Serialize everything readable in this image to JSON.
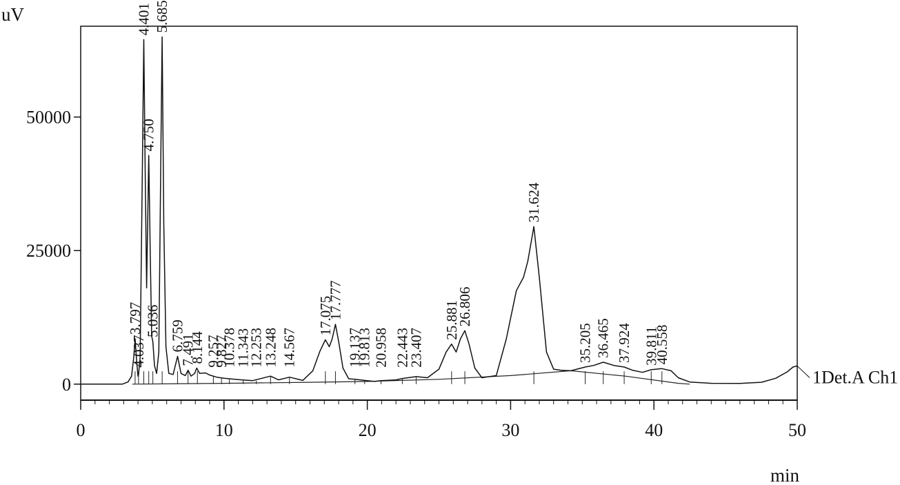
{
  "chart_data": {
    "type": "line",
    "ylabel": "uV",
    "xlabel": "min",
    "xlim": [
      0,
      50
    ],
    "ylim": [
      -3000,
      67000
    ],
    "x_ticks": [
      "0",
      "10",
      "20",
      "30",
      "40",
      "50"
    ],
    "y_ticks": [
      "0",
      "25000",
      "50000"
    ],
    "x_tick_values": [
      0,
      10,
      20,
      30,
      40,
      50
    ],
    "y_tick_values": [
      0,
      25000,
      50000
    ],
    "x_minor_step": 1,
    "grid": false,
    "series": [
      {
        "name": "1Det.A Ch1",
        "color": "#111111",
        "points": [
          [
            0,
            0
          ],
          [
            2.9,
            0
          ],
          [
            3.3,
            400
          ],
          [
            3.55,
            1500
          ],
          [
            3.7,
            5000
          ],
          [
            3.797,
            8500
          ],
          [
            3.9,
            4500
          ],
          [
            4.0,
            1500
          ],
          [
            4.037,
            1800
          ],
          [
            4.15,
            5000
          ],
          [
            4.3,
            40000
          ],
          [
            4.401,
            64500
          ],
          [
            4.5,
            40000
          ],
          [
            4.6,
            18000
          ],
          [
            4.75,
            42800
          ],
          [
            4.85,
            25000
          ],
          [
            4.95,
            9000
          ],
          [
            5.036,
            8000
          ],
          [
            5.15,
            3500
          ],
          [
            5.3,
            2000
          ],
          [
            5.45,
            6000
          ],
          [
            5.6,
            45000
          ],
          [
            5.685,
            65000
          ],
          [
            5.8,
            30000
          ],
          [
            5.95,
            7000
          ],
          [
            6.15,
            2000
          ],
          [
            6.45,
            1800
          ],
          [
            6.759,
            5200
          ],
          [
            7.0,
            2000
          ],
          [
            7.3,
            1600
          ],
          [
            7.491,
            2600
          ],
          [
            7.7,
            1500
          ],
          [
            7.95,
            2000
          ],
          [
            8.1,
            3000
          ],
          [
            8.3,
            2000
          ],
          [
            8.7,
            2100
          ],
          [
            9.0,
            1700
          ],
          [
            9.5,
            1300
          ],
          [
            10.0,
            1100
          ],
          [
            11.0,
            850
          ],
          [
            12.0,
            650
          ],
          [
            13.248,
            1500
          ],
          [
            13.8,
            800
          ],
          [
            14.567,
            1300
          ],
          [
            15.5,
            700
          ],
          [
            16.2,
            2500
          ],
          [
            16.7,
            6200
          ],
          [
            17.075,
            8300
          ],
          [
            17.35,
            7000
          ],
          [
            17.55,
            8500
          ],
          [
            17.777,
            11200
          ],
          [
            18.0,
            8000
          ],
          [
            18.3,
            3000
          ],
          [
            18.7,
            1000
          ],
          [
            19.137,
            900
          ],
          [
            19.813,
            700
          ],
          [
            20.5,
            500
          ],
          [
            20.958,
            650
          ],
          [
            22.0,
            800
          ],
          [
            22.443,
            1050
          ],
          [
            23.407,
            1400
          ],
          [
            24.2,
            1200
          ],
          [
            25.0,
            2800
          ],
          [
            25.5,
            6000
          ],
          [
            25.881,
            7500
          ],
          [
            26.2,
            6000
          ],
          [
            26.5,
            8500
          ],
          [
            26.806,
            10000
          ],
          [
            27.1,
            7500
          ],
          [
            27.5,
            3000
          ],
          [
            28.0,
            1200
          ],
          [
            29.0,
            1600
          ],
          [
            29.7,
            8500
          ],
          [
            30.4,
            17500
          ],
          [
            30.9,
            20000
          ],
          [
            31.2,
            23000
          ],
          [
            31.624,
            29500
          ],
          [
            32.0,
            20000
          ],
          [
            32.5,
            6000
          ],
          [
            33.0,
            2800
          ],
          [
            33.5,
            2600
          ],
          [
            34.2,
            2500
          ],
          [
            35.205,
            3200
          ],
          [
            35.8,
            3500
          ],
          [
            36.465,
            4100
          ],
          [
            37.2,
            3500
          ],
          [
            37.924,
            3200
          ],
          [
            38.5,
            2600
          ],
          [
            39.2,
            2200
          ],
          [
            39.811,
            2700
          ],
          [
            40.558,
            2900
          ],
          [
            41.2,
            2500
          ],
          [
            41.7,
            1200
          ],
          [
            42.5,
            400
          ],
          [
            44,
            150
          ],
          [
            46,
            120
          ],
          [
            47.5,
            350
          ],
          [
            48.5,
            1100
          ],
          [
            49.3,
            2300
          ],
          [
            49.7,
            3200
          ],
          [
            50.0,
            3400
          ]
        ]
      }
    ],
    "baseline": [
      [
        3.6,
        0
      ],
      [
        10,
        150
      ],
      [
        16,
        350
      ],
      [
        20,
        500
      ],
      [
        25,
        900
      ],
      [
        30,
        1600
      ],
      [
        34.2,
        2500
      ],
      [
        38,
        1500
      ],
      [
        41.7,
        150
      ],
      [
        42.5,
        0
      ]
    ],
    "peak_marks": [
      {
        "label": "3.797",
        "x": 3.797,
        "y": 8500
      },
      {
        "label": "4.037",
        "x": 4.037,
        "y": 1800
      },
      {
        "label": "4.401",
        "x": 4.401,
        "y": 64500
      },
      {
        "label": "4.750",
        "x": 4.75,
        "y": 42800
      },
      {
        "label": "5.036",
        "x": 5.036,
        "y": 8000
      },
      {
        "label": "5.685",
        "x": 5.685,
        "y": 65000
      },
      {
        "label": "6.759",
        "x": 6.759,
        "y": 5200
      },
      {
        "label": "7.491",
        "x": 7.491,
        "y": 2600
      },
      {
        "label": "8.144",
        "x": 8.144,
        "y": 3000
      },
      {
        "label": "9.257",
        "x": 9.257,
        "y": 1500
      },
      {
        "label": "9.827",
        "x": 9.827,
        "y": 1250
      },
      {
        "label": "10.378",
        "x": 10.378,
        "y": 1000
      },
      {
        "label": "11.343",
        "x": 11.343,
        "y": 800
      },
      {
        "label": "12.253",
        "x": 12.253,
        "y": 650
      },
      {
        "label": "13.248",
        "x": 13.248,
        "y": 1500
      },
      {
        "label": "14.567",
        "x": 14.567,
        "y": 1300
      },
      {
        "label": "17.075",
        "x": 17.075,
        "y": 8300
      },
      {
        "label": "17.777",
        "x": 17.777,
        "y": 11200
      },
      {
        "label": "19.137",
        "x": 19.137,
        "y": 900
      },
      {
        "label": "19.813",
        "x": 19.813,
        "y": 700
      },
      {
        "label": "20.958",
        "x": 20.958,
        "y": 650
      },
      {
        "label": "22.443",
        "x": 22.443,
        "y": 1050
      },
      {
        "label": "23.407",
        "x": 23.407,
        "y": 1400
      },
      {
        "label": "25.881",
        "x": 25.881,
        "y": 7500
      },
      {
        "label": "26.806",
        "x": 26.806,
        "y": 10000
      },
      {
        "label": "31.624",
        "x": 31.624,
        "y": 29500
      },
      {
        "label": "35.205",
        "x": 35.205,
        "y": 3200
      },
      {
        "label": "36.465",
        "x": 36.465,
        "y": 4100
      },
      {
        "label": "37.924",
        "x": 37.924,
        "y": 3200
      },
      {
        "label": "39.811",
        "x": 39.811,
        "y": 2700
      },
      {
        "label": "40.558",
        "x": 40.558,
        "y": 2900
      }
    ]
  }
}
